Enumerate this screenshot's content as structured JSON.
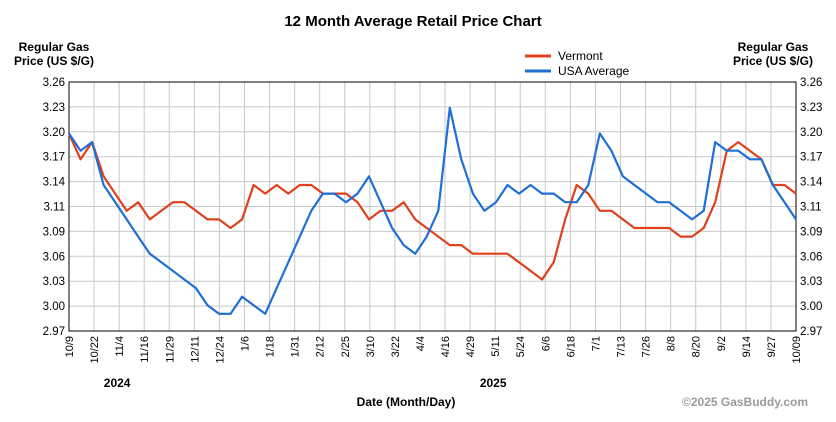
{
  "chart_data": {
    "type": "line",
    "title": "12 Month Average Retail Price Chart",
    "ylabel_line1": "Regular Gas",
    "ylabel_line2": "Price (US $/G)",
    "xlabel": "Date (Month/Day)",
    "credit": "©2025 GasBuddy.com",
    "ylim": [
      2.97,
      3.26
    ],
    "y_ticks": [
      "3.26",
      "3.23",
      "3.20",
      "3.17",
      "3.14",
      "3.11",
      "3.09",
      "3.06",
      "3.03",
      "3.00",
      "2.97"
    ],
    "x_ticks": [
      "10/9",
      "10/22",
      "11/4",
      "11/16",
      "11/29",
      "12/11",
      "12/24",
      "1/6",
      "1/18",
      "1/31",
      "2/12",
      "2/25",
      "3/10",
      "3/22",
      "4/4",
      "4/16",
      "4/29",
      "5/11",
      "5/24",
      "6/6",
      "6/18",
      "7/1",
      "7/13",
      "7/26",
      "8/8",
      "8/20",
      "9/2",
      "9/14",
      "9/27",
      "10/09"
    ],
    "years": [
      {
        "label": "2024",
        "under_tick": 2
      },
      {
        "label": "2025",
        "under_tick": 17
      }
    ],
    "legend": {
      "position": "top-right"
    },
    "grid": true,
    "series": [
      {
        "name": "Vermont",
        "color": "#e0401c",
        "values": [
          3.2,
          3.17,
          3.19,
          3.15,
          3.13,
          3.11,
          3.12,
          3.1,
          3.11,
          3.12,
          3.12,
          3.11,
          3.1,
          3.1,
          3.09,
          3.1,
          3.14,
          3.13,
          3.14,
          3.13,
          3.14,
          3.14,
          3.13,
          3.13,
          3.13,
          3.12,
          3.1,
          3.11,
          3.11,
          3.12,
          3.1,
          3.09,
          3.08,
          3.07,
          3.07,
          3.06,
          3.06,
          3.06,
          3.06,
          3.05,
          3.04,
          3.03,
          3.05,
          3.1,
          3.14,
          3.13,
          3.11,
          3.11,
          3.1,
          3.09,
          3.09,
          3.09,
          3.09,
          3.08,
          3.08,
          3.09,
          3.12,
          3.18,
          3.19,
          3.18,
          3.17,
          3.14,
          3.14,
          3.13
        ]
      },
      {
        "name": "USA Average",
        "color": "#1f6fd6",
        "values": [
          3.2,
          3.18,
          3.19,
          3.14,
          3.12,
          3.1,
          3.08,
          3.06,
          3.05,
          3.04,
          3.03,
          3.02,
          3.0,
          2.99,
          2.99,
          3.01,
          3.0,
          2.99,
          3.02,
          3.05,
          3.08,
          3.11,
          3.13,
          3.13,
          3.12,
          3.13,
          3.15,
          3.12,
          3.09,
          3.07,
          3.06,
          3.08,
          3.11,
          3.23,
          3.17,
          3.13,
          3.11,
          3.12,
          3.14,
          3.13,
          3.14,
          3.13,
          3.13,
          3.12,
          3.12,
          3.14,
          3.2,
          3.18,
          3.15,
          3.14,
          3.13,
          3.12,
          3.12,
          3.11,
          3.1,
          3.11,
          3.19,
          3.18,
          3.18,
          3.17,
          3.17,
          3.14,
          3.12,
          3.1
        ]
      }
    ]
  }
}
